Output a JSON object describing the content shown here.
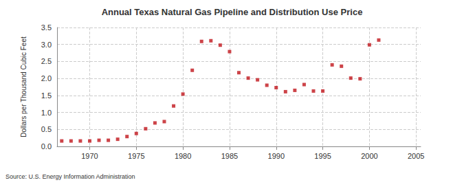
{
  "chart_data": {
    "type": "scatter",
    "title": "Annual Texas Natural Gas Pipeline and Distribution Use Price",
    "y_label": "Dollars per Thousand Cubic Feet",
    "source": "Source: U.S. Energy Information Administration",
    "x": [
      1967,
      1968,
      1969,
      1970,
      1971,
      1972,
      1973,
      1974,
      1975,
      1976,
      1977,
      1978,
      1979,
      1980,
      1981,
      1982,
      1983,
      1984,
      1985,
      1986,
      1987,
      1988,
      1989,
      1990,
      1991,
      1992,
      1993,
      1994,
      1995,
      1996,
      1997,
      1998,
      1999,
      2000,
      2001
    ],
    "values": [
      0.16,
      0.16,
      0.16,
      0.16,
      0.18,
      0.18,
      0.21,
      0.29,
      0.38,
      0.52,
      0.69,
      0.73,
      1.19,
      1.54,
      2.24,
      3.09,
      3.11,
      2.98,
      2.79,
      2.17,
      2.01,
      1.96,
      1.8,
      1.73,
      1.61,
      1.65,
      1.82,
      1.63,
      1.63,
      2.4,
      2.36,
      2.01,
      1.99,
      2.99,
      3.13
    ],
    "color": "#c0151b",
    "marker": "square",
    "xlim": [
      1966.5,
      2005.5
    ],
    "xticks": [
      1970,
      1975,
      1980,
      1985,
      1990,
      1995,
      2000,
      2005
    ],
    "ylim": [
      0,
      3.5
    ],
    "yticks": [
      {
        "value": 0,
        "label": "0.0"
      },
      {
        "value": 0.5,
        "label": "0.5"
      },
      {
        "value": 1,
        "label": "1.0"
      },
      {
        "value": 1.5,
        "label": "1.5"
      },
      {
        "value": 2,
        "label": "2.0"
      },
      {
        "value": 2.5,
        "label": "2.5"
      },
      {
        "value": 3,
        "label": "3.0"
      },
      {
        "value": 3.5,
        "label": "3.5"
      }
    ],
    "grid": true
  }
}
